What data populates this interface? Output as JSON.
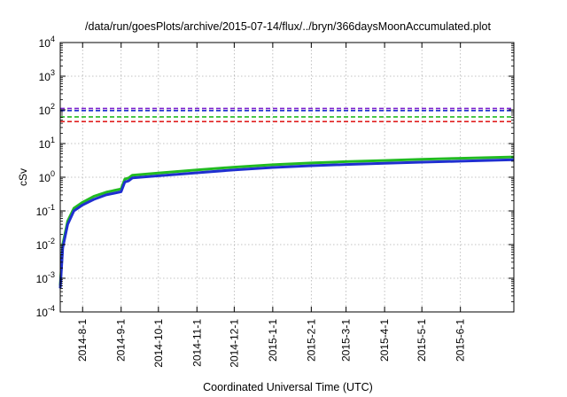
{
  "chart_data": {
    "type": "line",
    "title": "/data/run/goesPlots/archive/2015-07-14/flux/../bryn/366daysMoonAccumulated.plot",
    "xlabel": "Coordinated Universal Time (UTC)",
    "ylabel": "cSv",
    "y_scale": "log",
    "ylim": [
      0.0001,
      10000
    ],
    "y_ticks": [
      {
        "value": 0.0001,
        "base": "10",
        "exp": "-4"
      },
      {
        "value": 0.001,
        "base": "10",
        "exp": "-3"
      },
      {
        "value": 0.01,
        "base": "10",
        "exp": "-2"
      },
      {
        "value": 0.1,
        "base": "10",
        "exp": "-1"
      },
      {
        "value": 1,
        "base": "10",
        "exp": "0"
      },
      {
        "value": 10,
        "base": "10",
        "exp": "1"
      },
      {
        "value": 100,
        "base": "10",
        "exp": "2"
      },
      {
        "value": 1000,
        "base": "10",
        "exp": "3"
      },
      {
        "value": 10000,
        "base": "10",
        "exp": "4"
      }
    ],
    "xlim": [
      "2014-07-14",
      "2015-07-14"
    ],
    "x_ticks": [
      {
        "date": "2014-08-01",
        "label": "2014-8-1"
      },
      {
        "date": "2014-09-01",
        "label": "2014-9-1"
      },
      {
        "date": "2014-10-01",
        "label": "2014-10-1"
      },
      {
        "date": "2014-11-01",
        "label": "2014-11-1"
      },
      {
        "date": "2014-12-01",
        "label": "2014-12-1"
      },
      {
        "date": "2015-01-01",
        "label": "2015-1-1"
      },
      {
        "date": "2015-02-01",
        "label": "2015-2-1"
      },
      {
        "date": "2015-03-01",
        "label": "2015-3-1"
      },
      {
        "date": "2015-04-01",
        "label": "2015-4-1"
      },
      {
        "date": "2015-05-01",
        "label": "2015-5-1"
      },
      {
        "date": "2015-06-01",
        "label": "2015-6-1"
      }
    ],
    "grid": true,
    "reference_lines": [
      {
        "value": 110,
        "color": "#7a1fd0"
      },
      {
        "value": 95,
        "color": "#1f2fd0"
      },
      {
        "value": 62,
        "color": "#22bb22"
      },
      {
        "value": 45,
        "color": "#e02020"
      }
    ],
    "series": [
      {
        "color": "#22bb22",
        "x": [
          "2014-07-14",
          "2014-07-16",
          "2014-07-20",
          "2014-07-25",
          "2014-08-01",
          "2014-08-10",
          "2014-08-20",
          "2014-09-01",
          "2014-09-04",
          "2014-09-07",
          "2014-09-10",
          "2014-10-01",
          "2014-11-01",
          "2014-12-01",
          "2015-01-01",
          "2015-02-01",
          "2015-03-01",
          "2015-04-01",
          "2015-05-01",
          "2015-06-01",
          "2015-07-14"
        ],
        "values": [
          0.0006,
          0.01,
          0.05,
          0.12,
          0.18,
          0.27,
          0.36,
          0.45,
          0.88,
          0.95,
          1.15,
          1.33,
          1.65,
          2.0,
          2.35,
          2.65,
          2.9,
          3.15,
          3.4,
          3.65,
          4.0
        ]
      },
      {
        "color": "#1f2fd0",
        "x": [
          "2014-07-14",
          "2014-07-16",
          "2014-07-20",
          "2014-07-25",
          "2014-08-01",
          "2014-08-10",
          "2014-08-20",
          "2014-09-01",
          "2014-09-04",
          "2014-09-07",
          "2014-09-10",
          "2014-10-01",
          "2014-11-01",
          "2014-12-01",
          "2015-01-01",
          "2015-02-01",
          "2015-03-01",
          "2015-04-01",
          "2015-05-01",
          "2015-06-01",
          "2015-07-14"
        ],
        "values": [
          0.0005,
          0.008,
          0.04,
          0.1,
          0.15,
          0.22,
          0.3,
          0.37,
          0.72,
          0.78,
          0.95,
          1.1,
          1.35,
          1.65,
          1.95,
          2.2,
          2.4,
          2.6,
          2.8,
          3.0,
          3.3
        ]
      }
    ]
  }
}
